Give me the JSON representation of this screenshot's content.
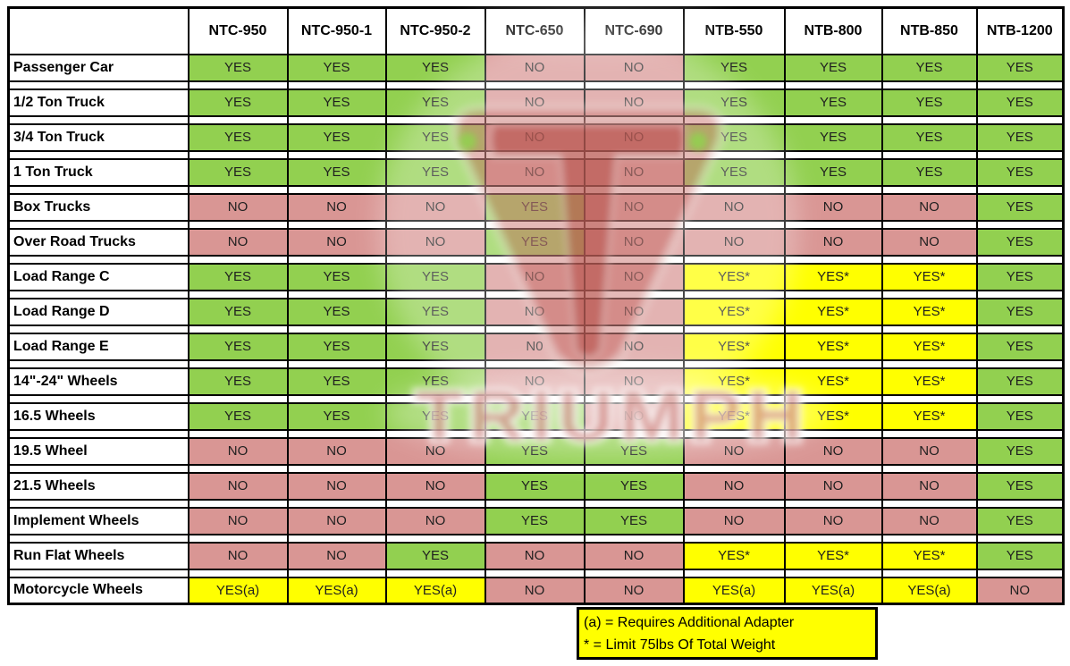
{
  "chart_data": {
    "type": "table",
    "columns": [
      "",
      "NTC-950",
      "NTC-950-1",
      "NTC-950-2",
      "NTC-650",
      "NTC-690",
      "NTB-550",
      "NTB-800",
      "NTB-850",
      "NTB-1200"
    ],
    "rows": [
      {
        "label": "Passenger Car",
        "values": [
          "YES",
          "YES",
          "YES",
          "NO",
          "NO",
          "YES",
          "YES",
          "YES",
          "YES"
        ]
      },
      {
        "label": "1/2 Ton Truck",
        "values": [
          "YES",
          "YES",
          "YES",
          "NO",
          "NO",
          "YES",
          "YES",
          "YES",
          "YES"
        ]
      },
      {
        "label": "3/4 Ton Truck",
        "values": [
          "YES",
          "YES",
          "YES",
          "NO",
          "NO",
          "YES",
          "YES",
          "YES",
          "YES"
        ]
      },
      {
        "label": "1 Ton Truck",
        "values": [
          "YES",
          "YES",
          "YES",
          "NO",
          "NO",
          "YES",
          "YES",
          "YES",
          "YES"
        ]
      },
      {
        "label": "Box Trucks",
        "values": [
          "NO",
          "NO",
          "NO",
          "YES",
          "NO",
          "NO",
          "NO",
          "NO",
          "YES"
        ]
      },
      {
        "label": "Over Road Trucks",
        "values": [
          "NO",
          "NO",
          "NO",
          "YES",
          "NO",
          "NO",
          "NO",
          "NO",
          "YES"
        ]
      },
      {
        "label": "Load Range C",
        "values": [
          "YES",
          "YES",
          "YES",
          "NO",
          "NO",
          "YES*",
          "YES*",
          "YES*",
          "YES"
        ]
      },
      {
        "label": "Load Range D",
        "values": [
          "YES",
          "YES",
          "YES",
          "NO",
          "NO",
          "YES*",
          "YES*",
          "YES*",
          "YES"
        ]
      },
      {
        "label": "Load Range E",
        "values": [
          "YES",
          "YES",
          "YES",
          "N0",
          "NO",
          "YES*",
          "YES*",
          "YES*",
          "YES"
        ]
      },
      {
        "label": "14\"-24\" Wheels",
        "values": [
          "YES",
          "YES",
          "YES",
          "NO",
          "NO",
          "YES*",
          "YES*",
          "YES*",
          "YES"
        ]
      },
      {
        "label": "16.5 Wheels",
        "values": [
          "YES",
          "YES",
          "YES",
          "YES",
          "NO",
          "YES*",
          "YES*",
          "YES*",
          "YES"
        ]
      },
      {
        "label": "19.5 Wheel",
        "values": [
          "NO",
          "NO",
          "NO",
          "YES",
          "YES",
          "NO",
          "NO",
          "NO",
          "YES"
        ]
      },
      {
        "label": "21.5 Wheels",
        "values": [
          "NO",
          "NO",
          "NO",
          "YES",
          "YES",
          "NO",
          "NO",
          "NO",
          "YES"
        ]
      },
      {
        "label": "Implement Wheels",
        "values": [
          "NO",
          "NO",
          "NO",
          "YES",
          "YES",
          "NO",
          "NO",
          "NO",
          "YES"
        ]
      },
      {
        "label": "Run Flat Wheels",
        "values": [
          "NO",
          "NO",
          "YES",
          "NO",
          "NO",
          "YES*",
          "YES*",
          "YES*",
          "YES"
        ]
      },
      {
        "label": "Motorcycle Wheels",
        "values": [
          "YES(a)",
          "YES(a)",
          "YES(a)",
          "NO",
          "NO",
          "YES(a)",
          "YES(a)",
          "YES(a)",
          "NO"
        ]
      }
    ],
    "legend_position": "bottom-right",
    "cell_color_legend": {
      "yes": "green",
      "no": "red",
      "conditional": "yellow"
    }
  },
  "notes": {
    "line1": "(a) = Requires Additional Adapter",
    "line2": "* = Limit 75lbs Of Total Weight"
  },
  "watermark": {
    "text": "TRIUMPH"
  },
  "colors": {
    "yes_green": "#92D050",
    "no_red": "#D99694",
    "conditional_yellow": "#FFFF00",
    "note_bg": "#FFFF00",
    "border": "#000000",
    "watermark_red": "#B9463E"
  }
}
